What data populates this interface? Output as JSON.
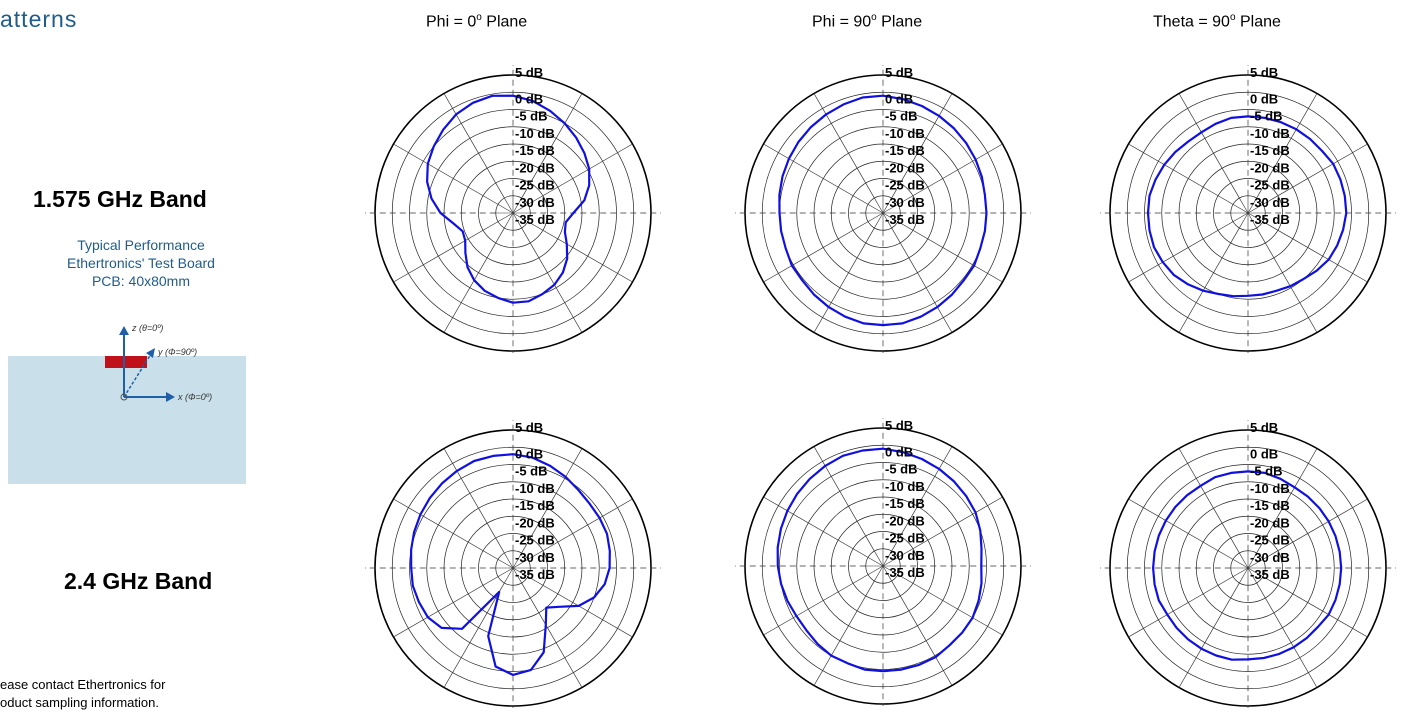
{
  "page": {
    "title": "atterns",
    "band_labels": [
      "1.575 GHz Band",
      "2.4 GHz Band"
    ],
    "performance_lines": [
      "Typical Performance",
      "Ethertronics' Test Board",
      "PCB: 40x80mm"
    ],
    "contact_lines": [
      "ease contact Ethertronics for",
      "oduct sampling information."
    ],
    "diagram": {
      "z_label": "z (θ=0º)",
      "y_label": "y (Φ=90º)",
      "x_label": "x (Φ=0º)",
      "board_color": "#c9e0ea",
      "antenna_color": "#c0101a",
      "arrow_color": "#1f5fa8"
    },
    "column_titles": [
      {
        "prefix": "Phi = 0",
        "sup": "o",
        "suffix": " Plane"
      },
      {
        "prefix": "Phi = 90",
        "sup": "o",
        "suffix": " Plane"
      },
      {
        "prefix": "Theta = 90",
        "sup": "o",
        "suffix": " Plane"
      }
    ]
  },
  "chart_data": [
    {
      "type": "polar-line",
      "band": "1.575 GHz Band",
      "plane": "Phi = 0° Plane",
      "r_labels": [
        "5 dB",
        "0 dB",
        "-5 dB",
        "-10 dB",
        "-15 dB",
        "-20 dB",
        "-25 dB",
        "-30 dB",
        "-35 dB"
      ],
      "r_range_db": [
        -35,
        5
      ],
      "color": "#1010e0",
      "gain_db": [
        -1,
        -2,
        -3.5,
        -5,
        -6.5,
        -8,
        -9.5,
        -11.5,
        -14,
        -17.5,
        -19.5,
        -19,
        -17,
        -14.5,
        -12.5,
        -11,
        -10,
        -9,
        -9,
        -10,
        -11,
        -12.5,
        -14.5,
        -17,
        -19,
        -19.5,
        -17.5,
        -14,
        -11,
        -8.5,
        -6.5,
        -5,
        -3.5,
        -2,
        -1,
        -0.5
      ]
    },
    {
      "type": "polar-line",
      "band": "1.575 GHz Band",
      "plane": "Phi = 90° Plane",
      "r_labels": [
        "5 dB",
        "0 dB",
        "-5 dB",
        "-10 dB",
        "-15 dB",
        "-20 dB",
        "-25 dB",
        "-30 dB",
        "-35 dB"
      ],
      "r_range_db": [
        -35,
        5
      ],
      "color": "#1010e0",
      "gain_db": [
        -1,
        -1.5,
        -2,
        -2.5,
        -3,
        -3.5,
        -4,
        -4.5,
        -5,
        -5,
        -5,
        -5,
        -4.5,
        -4.5,
        -4,
        -3.5,
        -3,
        -2.5,
        -2.5,
        -2.5,
        -3,
        -3.5,
        -4,
        -4.5,
        -4.5,
        -5,
        -5,
        -5,
        -4.5,
        -4,
        -3.5,
        -3,
        -2.5,
        -2,
        -1.5,
        -1
      ]
    },
    {
      "type": "polar-line",
      "band": "1.575 GHz Band",
      "plane": "Theta = 90° Plane",
      "r_labels": [
        "5 dB",
        "0 dB",
        "-5 dB",
        "-10 dB",
        "-15 dB",
        "-20 dB",
        "-25 dB",
        "-30 dB",
        "-35 dB"
      ],
      "r_range_db": [
        -35,
        5
      ],
      "color": "#1010e0",
      "gain_db": [
        -7,
        -7,
        -7,
        -7,
        -7,
        -7,
        -6.5,
        -6.5,
        -6.5,
        -6.5,
        -7,
        -7.5,
        -8,
        -9,
        -10,
        -10.5,
        -11,
        -11,
        -11,
        -10.5,
        -10,
        -9,
        -8,
        -7,
        -6.5,
        -6,
        -6,
        -6,
        -6,
        -6.5,
        -7,
        -7.5,
        -8,
        -8,
        -7.5,
        -7
      ]
    },
    {
      "type": "polar-line",
      "band": "2.4 GHz Band",
      "plane": "Phi = 0° Plane",
      "r_labels": [
        "5 dB",
        "0 dB",
        "-5 dB",
        "-10 dB",
        "-15 dB",
        "-20 dB",
        "-25 dB",
        "-30 dB",
        "-35 dB"
      ],
      "r_range_db": [
        -35,
        5
      ],
      "color": "#1010e0",
      "gain_db": [
        -2,
        -2.5,
        -3.5,
        -4.5,
        -5.5,
        -6,
        -6,
        -6,
        -6.5,
        -7,
        -8,
        -10,
        -13,
        -17.5,
        -20,
        -16,
        -9,
        -5,
        -4,
        -6,
        -14,
        -27,
        -12,
        -8,
        -6.5,
        -6,
        -5.5,
        -5.5,
        -5,
        -4.5,
        -4,
        -3.5,
        -3,
        -2.5,
        -2,
        -2
      ]
    },
    {
      "type": "polar-line",
      "band": "2.4 GHz Band",
      "plane": "Phi = 90° Plane",
      "r_labels": [
        "5 dB",
        "0 dB",
        "-5 dB",
        "-10 dB",
        "-15 dB",
        "-20 dB",
        "-25 dB",
        "-30 dB",
        "-35 dB"
      ],
      "r_range_db": [
        -35,
        5
      ],
      "color": "#1010e0",
      "gain_db": [
        -1,
        -1.5,
        -2,
        -2.5,
        -3,
        -3.5,
        -4,
        -5,
        -6,
        -6.5,
        -6,
        -5.5,
        -5,
        -5,
        -5,
        -4.5,
        -4.5,
        -4.5,
        -4.5,
        -4.5,
        -5,
        -5,
        -5.5,
        -6,
        -6,
        -5.5,
        -5,
        -4.5,
        -4,
        -3.5,
        -3,
        -2.5,
        -2,
        -1.5,
        -1,
        -1
      ]
    },
    {
      "type": "polar-line",
      "band": "2.4 GHz Band",
      "plane": "Theta = 90° Plane",
      "r_labels": [
        "5 dB",
        "0 dB",
        "-5 dB",
        "-10 dB",
        "-15 dB",
        "-20 dB",
        "-25 dB",
        "-30 dB",
        "-35 dB"
      ],
      "r_range_db": [
        -35,
        5
      ],
      "color": "#1010e0",
      "gain_db": [
        -7,
        -7,
        -7.5,
        -8,
        -8,
        -8,
        -8,
        -8,
        -8,
        -8,
        -8,
        -8,
        -8,
        -8.5,
        -8.5,
        -8.5,
        -8.5,
        -8.5,
        -8.5,
        -8,
        -8,
        -8,
        -8,
        -8,
        -8,
        -7.5,
        -7.5,
        -7.5,
        -7.5,
        -7.5,
        -7.5,
        -7.5,
        -7.5,
        -7.5,
        -7,
        -7
      ]
    }
  ]
}
